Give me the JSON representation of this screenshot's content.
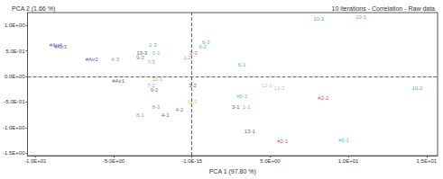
{
  "chart_data": {
    "type": "scatter",
    "title": "PCA 2 (1.66 %)",
    "subtitle": "10 iterations - Correlation - Raw data",
    "x_label": "PCA 1 (97.80 %)",
    "xlim": [
      -10.5,
      15.7
    ],
    "ylim": [
      -1.55,
      1.25
    ],
    "xticks": [
      {
        "value": -10,
        "label": "-1.0E+01"
      },
      {
        "value": -5,
        "label": "-5.0E+00"
      },
      {
        "value": -1e-15,
        "label": "-1.0E-15"
      },
      {
        "value": 5,
        "label": "5.0E+00"
      },
      {
        "value": 10,
        "label": "1.0E+01"
      },
      {
        "value": 15,
        "label": "1.5E+01"
      }
    ],
    "yticks": [
      {
        "value": -1.5,
        "label": "-1.5E+00"
      },
      {
        "value": -1,
        "label": "-1.0E+00"
      },
      {
        "value": -0.5,
        "label": "-5.0E-01"
      },
      {
        "value": 0,
        "label": "0.0E+00"
      },
      {
        "value": 0.5,
        "label": "5.0E-01"
      },
      {
        "value": 1,
        "label": "1.0E+00"
      }
    ],
    "zero_lines": {
      "x": 0,
      "y": 0
    },
    "grid": false,
    "marker": "none",
    "points": [
      {
        "label": "#Air4",
        "x": -8.7,
        "y": 0.61,
        "color": "#2b2b9a"
      },
      {
        "label": "#Air3",
        "x": -8.4,
        "y": 0.58,
        "color": "#2b2b9a"
      },
      {
        "label": "#Air2",
        "x": -6.4,
        "y": 0.33,
        "color": "#2b2b9a"
      },
      {
        "label": "#Air1",
        "x": -4.7,
        "y": -0.08,
        "color": "#2b2b9a"
      },
      {
        "label": "4-3",
        "x": -4.9,
        "y": 0.33,
        "color": "#808080"
      },
      {
        "label": "1-3",
        "x": -2.5,
        "y": 0.62,
        "color": "#33aa33"
      },
      {
        "label": "13-3",
        "x": -3.2,
        "y": 0.45,
        "color": "#333333"
      },
      {
        "label": "9-3",
        "x": -3.3,
        "y": 0.37,
        "color": "#8a3a8a"
      },
      {
        "label": "5-3",
        "x": -2.3,
        "y": 0.45,
        "color": "#33bbcc"
      },
      {
        "label": "7-3",
        "x": -2.6,
        "y": 0.28,
        "color": "#c060c0"
      },
      {
        "label": "1-2",
        "x": -0.3,
        "y": 0.37,
        "color": "#55bb33"
      },
      {
        "label": "2-3",
        "x": 0.1,
        "y": 0.45,
        "color": "#dd3333"
      },
      {
        "label": "6-3",
        "x": 0.9,
        "y": 0.67,
        "color": "#33aa55"
      },
      {
        "label": "6-2",
        "x": 0.7,
        "y": 0.58,
        "color": "#22aa88"
      },
      {
        "label": "6-1",
        "x": 3.2,
        "y": 0.23,
        "color": "#33aa55"
      },
      {
        "label": "10-3",
        "x": 8.1,
        "y": 1.12,
        "color": "#229988"
      },
      {
        "label": "10-1",
        "x": 10.8,
        "y": 1.17,
        "color": "#229988"
      },
      {
        "label": "10-2",
        "x": 14.4,
        "y": -0.22,
        "color": "#229988"
      },
      {
        "label": "12-1",
        "x": 4.8,
        "y": -0.18,
        "color": "#b0b0b0"
      },
      {
        "label": "12-2",
        "x": 5.6,
        "y": -0.22,
        "color": "#b0b0b0"
      },
      {
        "label": "11-1",
        "x": -2.2,
        "y": -0.05,
        "color": "#999922"
      },
      {
        "label": "7-2",
        "x": -2.6,
        "y": -0.18,
        "color": "#c060c0"
      },
      {
        "label": "9-2",
        "x": -2.4,
        "y": -0.27,
        "color": "#8a3a8a"
      },
      {
        "label": "3-2",
        "x": 0.05,
        "y": -0.18,
        "color": "#333333"
      },
      {
        "label": "#5-3",
        "x": 3.2,
        "y": -0.38,
        "color": "#22bbdd"
      },
      {
        "label": "8-3",
        "x": -2.3,
        "y": -0.6,
        "color": "#808080"
      },
      {
        "label": "11-3",
        "x": 0.0,
        "y": -0.5,
        "color": "#cccc22"
      },
      {
        "label": "3-1",
        "x": 2.8,
        "y": -0.6,
        "color": "#333333"
      },
      {
        "label": "1-1",
        "x": 3.5,
        "y": -0.6,
        "color": "#55bb33"
      },
      {
        "label": "8-1",
        "x": -3.3,
        "y": -0.75,
        "color": "#808080"
      },
      {
        "label": "4-1",
        "x": -1.7,
        "y": -0.75,
        "color": "#2b2b9a"
      },
      {
        "label": "4-2",
        "x": -0.8,
        "y": -0.65,
        "color": "#6a4aaa"
      },
      {
        "label": "13-1",
        "x": 3.7,
        "y": -1.07,
        "color": "#333333"
      },
      {
        "label": "#2-2",
        "x": 8.4,
        "y": -0.43,
        "color": "#dd2222"
      },
      {
        "label": "#2-1",
        "x": 5.8,
        "y": -1.27,
        "color": "#dd2222"
      },
      {
        "label": "#5-1",
        "x": 9.7,
        "y": -1.25,
        "color": "#22bbdd"
      }
    ]
  }
}
